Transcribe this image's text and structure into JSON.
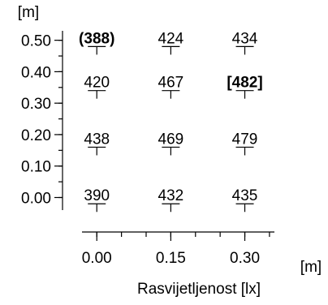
{
  "chart_data": {
    "type": "scatter",
    "title": "",
    "xlabel": "Rasvijetljenost [lx]",
    "x_unit": "[m]",
    "y_unit": "[m]",
    "xlim": [
      -0.03,
      0.36
    ],
    "ylim": [
      -0.04,
      0.53
    ],
    "x_ticks": [
      0.0,
      0.15,
      0.3
    ],
    "x_tick_labels": [
      "0.00",
      "0.15",
      "0.30"
    ],
    "x_minor_step": 0.05,
    "y_ticks": [
      0.0,
      0.1,
      0.2,
      0.3,
      0.4,
      0.5
    ],
    "y_tick_labels": [
      "0.00",
      "0.10",
      "0.20",
      "0.30",
      "0.40",
      "0.50"
    ],
    "y_minor_step": 0.05,
    "grid": false,
    "points": [
      {
        "x": 0.0,
        "y": 0.48,
        "label": "(388)",
        "style": "bold"
      },
      {
        "x": 0.15,
        "y": 0.48,
        "label": "424",
        "style": "normal"
      },
      {
        "x": 0.3,
        "y": 0.48,
        "label": "434",
        "style": "normal"
      },
      {
        "x": 0.0,
        "y": 0.34,
        "label": "420",
        "style": "normal"
      },
      {
        "x": 0.15,
        "y": 0.34,
        "label": "467",
        "style": "normal"
      },
      {
        "x": 0.3,
        "y": 0.34,
        "label": "[482]",
        "style": "bold"
      },
      {
        "x": 0.0,
        "y": 0.16,
        "label": "438",
        "style": "normal"
      },
      {
        "x": 0.15,
        "y": 0.16,
        "label": "469",
        "style": "normal"
      },
      {
        "x": 0.3,
        "y": 0.16,
        "label": "479",
        "style": "normal"
      },
      {
        "x": 0.0,
        "y": -0.02,
        "label": "390",
        "style": "normal"
      },
      {
        "x": 0.15,
        "y": -0.02,
        "label": "432",
        "style": "normal"
      },
      {
        "x": 0.3,
        "y": -0.02,
        "label": "435",
        "style": "normal"
      }
    ]
  }
}
